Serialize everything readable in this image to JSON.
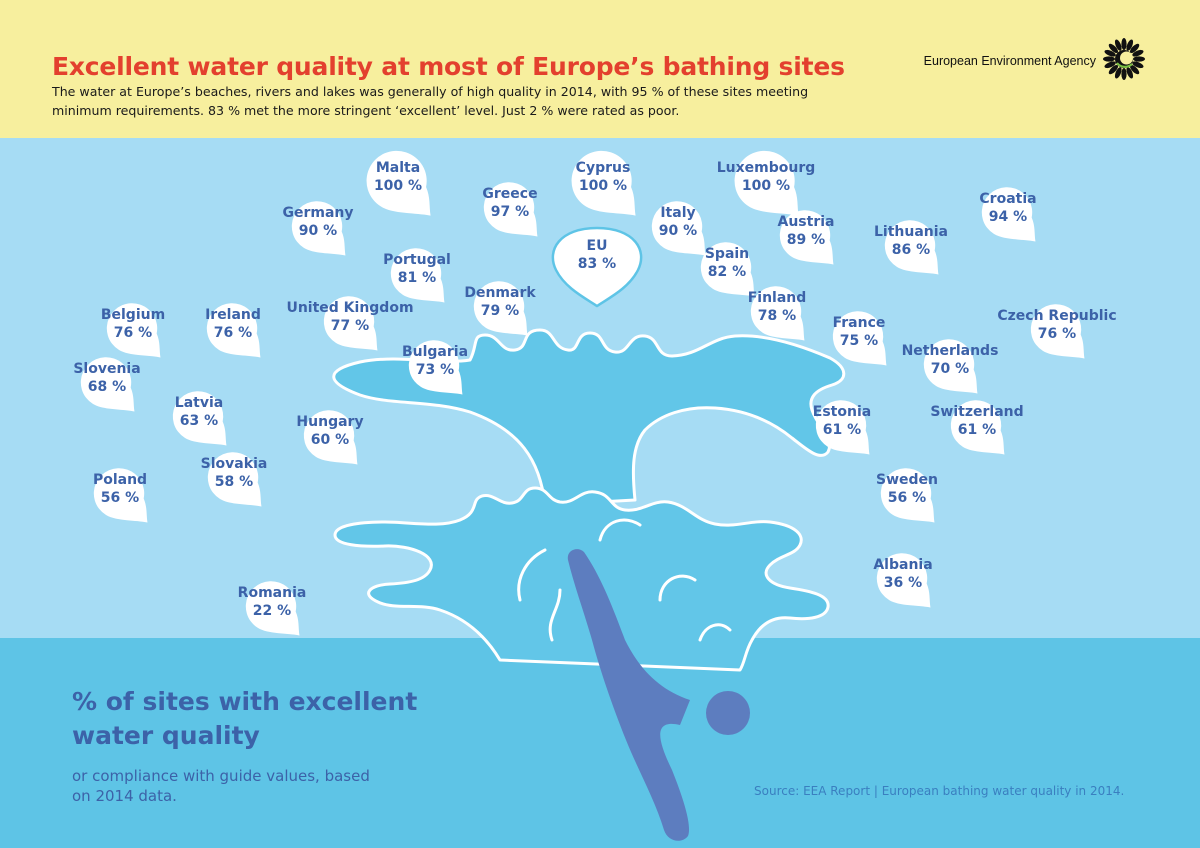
{
  "header": {
    "title": "Excellent water quality at most of Europe’s bathing sites",
    "subtitle": "The water at Europe’s beaches, rivers and lakes was generally of high quality in 2014, with 95 % of these sites meeting minimum requirements. 83 % met the more stringent ‘excellent’ level.  Just 2 % were rated as poor.",
    "agency": "European Environment Agency",
    "logo_icon": "eea-sun-logo-icon"
  },
  "legend": {
    "title": "% of sites with excellent water quality",
    "subtitle": "or compliance with guide values, based on 2014 data."
  },
  "source": "Source: EEA Report | European bathing water quality in 2014.",
  "colors": {
    "header_bg": "#f7ef9e",
    "title": "#e3402e",
    "sky_water": "#a6dcf4",
    "deep_water": "#5ec4e6",
    "label": "#3c62a8",
    "diver": "#5d7dbf"
  },
  "chart_data": {
    "type": "table",
    "unit": "%",
    "eu": {
      "name": "EU",
      "value": 83
    },
    "countries": [
      {
        "name": "Malta",
        "value": 100
      },
      {
        "name": "Cyprus",
        "value": 100
      },
      {
        "name": "Luxembourg",
        "value": 100
      },
      {
        "name": "Greece",
        "value": 97
      },
      {
        "name": "Croatia",
        "value": 94
      },
      {
        "name": "Germany",
        "value": 90
      },
      {
        "name": "Italy",
        "value": 90
      },
      {
        "name": "Austria",
        "value": 89
      },
      {
        "name": "Lithuania",
        "value": 86
      },
      {
        "name": "Spain",
        "value": 82
      },
      {
        "name": "Portugal",
        "value": 81
      },
      {
        "name": "Denmark",
        "value": 79
      },
      {
        "name": "Finland",
        "value": 78
      },
      {
        "name": "United Kingdom",
        "value": 77
      },
      {
        "name": "Belgium",
        "value": 76
      },
      {
        "name": "Ireland",
        "value": 76
      },
      {
        "name": "Czech Republic",
        "value": 76
      },
      {
        "name": "France",
        "value": 75
      },
      {
        "name": "Bulgaria",
        "value": 73
      },
      {
        "name": "Netherlands",
        "value": 70
      },
      {
        "name": "Slovenia",
        "value": 68
      },
      {
        "name": "Latvia",
        "value": 63
      },
      {
        "name": "Estonia",
        "value": 61
      },
      {
        "name": "Switzerland",
        "value": 61
      },
      {
        "name": "Hungary",
        "value": 60
      },
      {
        "name": "Slovakia",
        "value": 58
      },
      {
        "name": "Poland",
        "value": 56
      },
      {
        "name": "Sweden",
        "value": 56
      },
      {
        "name": "Albania",
        "value": 36
      },
      {
        "name": "Romania",
        "value": 22
      }
    ]
  }
}
